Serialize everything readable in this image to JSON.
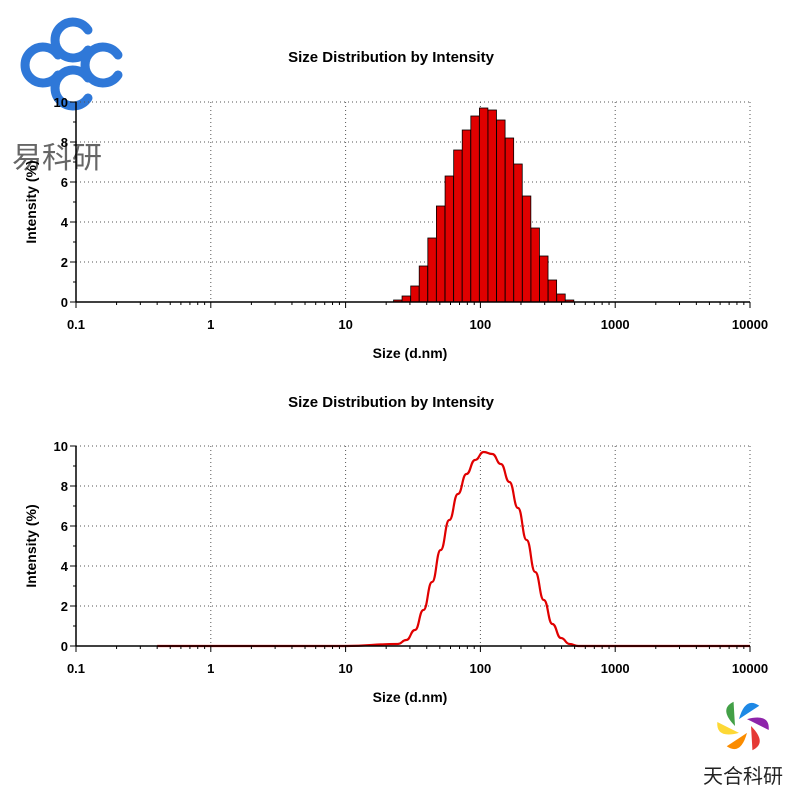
{
  "chart_data": [
    {
      "type": "bar",
      "title": "Size Distribution by Intensity",
      "xlabel": "Size (d.nm)",
      "ylabel": "Intensity (%)",
      "x_scale": "log",
      "xlim": [
        0.1,
        10000
      ],
      "ylim": [
        0,
        10
      ],
      "x_tick_labels": [
        "0.1",
        "1",
        "10",
        "100",
        "1000",
        "10000"
      ],
      "y_tick_labels": [
        "0",
        "2",
        "4",
        "6",
        "8",
        "10"
      ],
      "grid": true,
      "color": "#e00000",
      "x": [
        24.4,
        28.2,
        32.7,
        37.8,
        43.8,
        50.7,
        58.8,
        68.1,
        78.8,
        91.3,
        105.7,
        122.4,
        141.8,
        164.2,
        190.1,
        220.2,
        255.0,
        295.3,
        342.0,
        396.1,
        458.7
      ],
      "values": [
        0.1,
        0.3,
        0.8,
        1.8,
        3.2,
        4.8,
        6.3,
        7.6,
        8.6,
        9.3,
        9.7,
        9.6,
        9.1,
        8.2,
        6.9,
        5.3,
        3.7,
        2.3,
        1.1,
        0.4,
        0.1
      ]
    },
    {
      "type": "line",
      "title": "Size Distribution by Intensity",
      "xlabel": "Size (d.nm)",
      "ylabel": "Intensity (%)",
      "x_scale": "log",
      "xlim": [
        0.1,
        10000
      ],
      "ylim": [
        0,
        10
      ],
      "x_tick_labels": [
        "0.1",
        "1",
        "10",
        "100",
        "1000",
        "10000"
      ],
      "y_tick_labels": [
        "0",
        "2",
        "4",
        "6",
        "8",
        "10"
      ],
      "grid": true,
      "color": "#e00000",
      "x": [
        0.4,
        10,
        24.4,
        28.2,
        32.7,
        37.8,
        43.8,
        50.7,
        58.8,
        68.1,
        78.8,
        91.3,
        105.7,
        122.4,
        141.8,
        164.2,
        190.1,
        220.2,
        255.0,
        295.3,
        342.0,
        396.1,
        458.7,
        531.2,
        700,
        10000
      ],
      "values": [
        0,
        0,
        0.1,
        0.3,
        0.8,
        1.8,
        3.2,
        4.8,
        6.3,
        7.6,
        8.6,
        9.3,
        9.7,
        9.6,
        9.1,
        8.2,
        6.9,
        5.3,
        3.7,
        2.3,
        1.1,
        0.4,
        0.1,
        0,
        0,
        0
      ]
    }
  ],
  "watermarks": {
    "top_left": {
      "text": "易科研",
      "icon": "interlocking-rings-logo",
      "color": "#2f78d8"
    },
    "bottom_right": {
      "text": "天合科研",
      "icon": "rainbow-swirl-logo"
    }
  }
}
